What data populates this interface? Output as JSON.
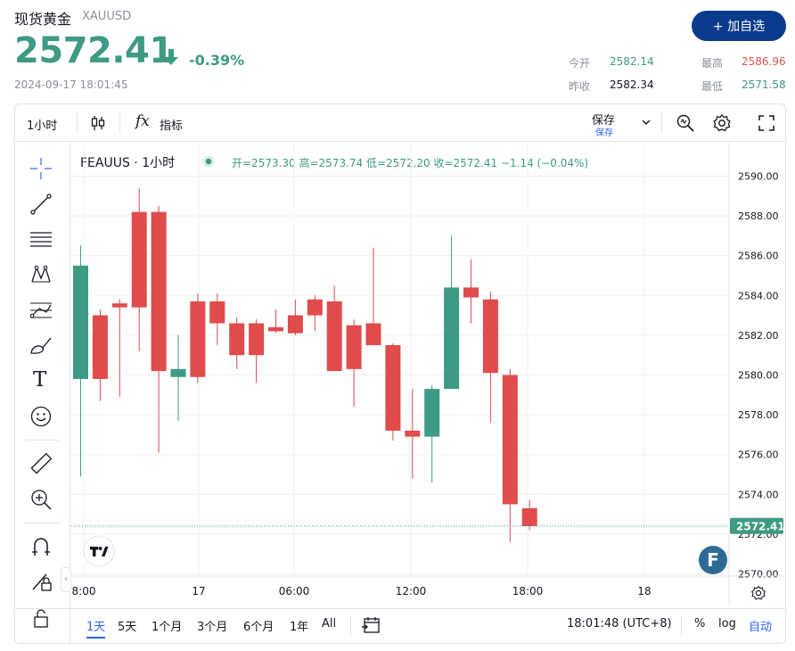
{
  "header": {
    "name": "现货黄金",
    "symbol": "XAUUSD",
    "price": "2572.41",
    "change": "-0.39%",
    "timestamp": "2024-09-17 18:01:45",
    "add_button": "+ 加自选"
  },
  "stats": {
    "open_label": "今开",
    "open_value": "2582.14",
    "high_label": "最高",
    "high_value": "2586.96",
    "prev_close_label": "昨收",
    "prev_close_value": "2582.34",
    "low_label": "最低",
    "low_value": "2571.58"
  },
  "toolbar": {
    "interval": "1小时",
    "indicators": "指标",
    "save": "保存",
    "save_sub": "保存"
  },
  "legend": {
    "title": "FEAUUS · 1小时",
    "ohlc": "开=2573.30 高=2573.74 低=2572.20 收=2572.41 −1.14 (−0.04%)"
  },
  "bottom": {
    "ranges": [
      "1天",
      "5天",
      "1个月",
      "3个月",
      "6个月",
      "1年",
      "All"
    ],
    "time": "18:01:48 (UTC+8)",
    "percent": "%",
    "log": "log",
    "auto": "自动"
  },
  "colors": {
    "up": "#3d9a83",
    "down": "#e04b4b",
    "accent": "#0a3a8c",
    "active_range": "#2962ff"
  },
  "chart_data": {
    "type": "candlestick",
    "x_tick_labels": [
      "8:00",
      "17",
      "06:00",
      "12:00",
      "18:00",
      "18"
    ],
    "y_tick_labels": [
      "2590.00",
      "2588.00",
      "2586.00",
      "2584.00",
      "2582.00",
      "2580.00",
      "2578.00",
      "2576.00",
      "2574.00",
      "2572.00",
      "2570.00"
    ],
    "ylim": [
      2569.8,
      2591.0
    ],
    "last_price_label": "2572.41",
    "candles": [
      {
        "o": 2579.8,
        "h": 2586.5,
        "l": 2574.9,
        "c": 2585.5
      },
      {
        "o": 2583.0,
        "h": 2583.3,
        "l": 2578.7,
        "c": 2579.8
      },
      {
        "o": 2583.6,
        "h": 2583.8,
        "l": 2578.9,
        "c": 2583.4
      },
      {
        "o": 2588.2,
        "h": 2589.4,
        "l": 2581.2,
        "c": 2583.4
      },
      {
        "o": 2588.2,
        "h": 2588.5,
        "l": 2576.1,
        "c": 2580.2
      },
      {
        "o": 2579.9,
        "h": 2582.0,
        "l": 2577.7,
        "c": 2580.3
      },
      {
        "o": 2583.7,
        "h": 2584.1,
        "l": 2579.6,
        "c": 2579.9
      },
      {
        "o": 2583.7,
        "h": 2584.1,
        "l": 2581.5,
        "c": 2582.6
      },
      {
        "o": 2582.6,
        "h": 2582.9,
        "l": 2580.3,
        "c": 2581.0
      },
      {
        "o": 2582.6,
        "h": 2582.8,
        "l": 2579.6,
        "c": 2581.0
      },
      {
        "o": 2582.4,
        "h": 2583.3,
        "l": 2582.1,
        "c": 2582.2
      },
      {
        "o": 2583.0,
        "h": 2583.8,
        "l": 2582.0,
        "c": 2582.1
      },
      {
        "o": 2583.8,
        "h": 2584.0,
        "l": 2582.2,
        "c": 2583.0
      },
      {
        "o": 2583.7,
        "h": 2584.5,
        "l": 2580.2,
        "c": 2580.2
      },
      {
        "o": 2582.5,
        "h": 2582.8,
        "l": 2578.4,
        "c": 2580.3
      },
      {
        "o": 2582.6,
        "h": 2586.4,
        "l": 2581.5,
        "c": 2581.5
      },
      {
        "o": 2581.5,
        "h": 2581.6,
        "l": 2576.7,
        "c": 2577.2
      },
      {
        "o": 2577.2,
        "h": 2579.3,
        "l": 2574.8,
        "c": 2576.9
      },
      {
        "o": 2576.9,
        "h": 2579.5,
        "l": 2574.6,
        "c": 2579.3
      },
      {
        "o": 2579.3,
        "h": 2587.0,
        "l": 2579.3,
        "c": 2584.4
      },
      {
        "o": 2584.4,
        "h": 2585.8,
        "l": 2582.6,
        "c": 2583.9
      },
      {
        "o": 2583.8,
        "h": 2584.2,
        "l": 2577.6,
        "c": 2580.1
      },
      {
        "o": 2580.0,
        "h": 2580.3,
        "l": 2571.6,
        "c": 2573.5
      },
      {
        "o": 2573.3,
        "h": 2573.7,
        "l": 2572.2,
        "c": 2572.4
      }
    ]
  }
}
